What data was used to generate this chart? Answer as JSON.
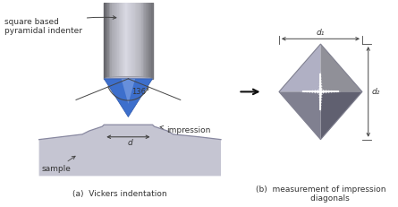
{
  "bg_color": "#ffffff",
  "label_square_based": "square based\npyramidal indenter",
  "label_136": "136°",
  "label_d": "d",
  "label_d1": "d₁",
  "label_d2": "d₂",
  "label_impression": "impression",
  "label_sample": "sample",
  "label_a": "(a)  Vickers indentation",
  "label_b": "(b)  measurement of impression\n       diagonals",
  "arrow_color": "#444444",
  "text_color": "#333333",
  "font_size": 6.5
}
